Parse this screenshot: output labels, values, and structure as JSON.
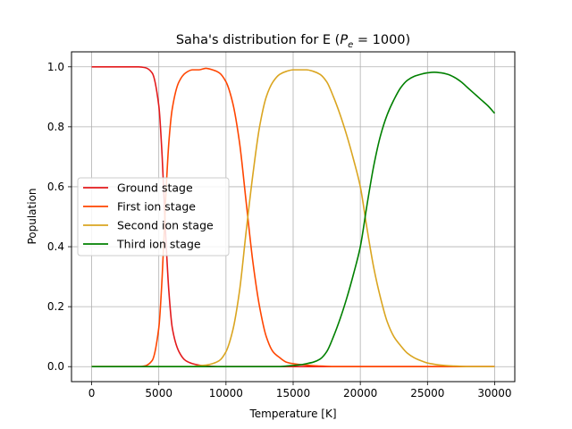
{
  "chart_data": {
    "type": "line",
    "title_prefix": "Saha's distribution for E (",
    "title_var": "P",
    "title_sub": "e",
    "title_suffix": " = 1000)",
    "xlabel": "Temperature [K]",
    "ylabel": "Population",
    "xlim": [
      -1500,
      31500
    ],
    "ylim": [
      -0.05,
      1.05
    ],
    "xticks": [
      0,
      5000,
      10000,
      15000,
      20000,
      25000,
      30000
    ],
    "yticks": [
      0.0,
      0.2,
      0.4,
      0.6,
      0.8,
      1.0
    ],
    "xtick_labels": [
      "0",
      "5000",
      "10000",
      "15000",
      "20000",
      "25000",
      "30000"
    ],
    "ytick_labels": [
      "0.0",
      "0.2",
      "0.4",
      "0.6",
      "0.8",
      "1.0"
    ],
    "grid": true,
    "legend_position": "center-left",
    "x": [
      0,
      1000,
      2000,
      3000,
      3500,
      4000,
      4500,
      5000,
      5250,
      5500,
      5750,
      6000,
      6500,
      7000,
      7500,
      8000,
      8500,
      9000,
      9500,
      10000,
      10500,
      11000,
      11500,
      12000,
      12500,
      13000,
      13500,
      14000,
      14500,
      15000,
      15500,
      16000,
      16500,
      17000,
      17500,
      18000,
      18500,
      19000,
      19500,
      20000,
      20500,
      21000,
      21500,
      22000,
      22500,
      23000,
      23500,
      24000,
      24500,
      25000,
      25500,
      26000,
      26500,
      27000,
      27500,
      28000,
      28500,
      29000,
      29500,
      30000
    ],
    "series": [
      {
        "name": "Ground stage",
        "color": "#e31a1c",
        "values": [
          1.0,
          1.0,
          1.0,
          1.0,
          1.0,
          0.997,
          0.98,
          0.87,
          0.7,
          0.45,
          0.25,
          0.13,
          0.05,
          0.02,
          0.01,
          0.005,
          0.002,
          0.001,
          0,
          0,
          0,
          0,
          0,
          0,
          0,
          0,
          0,
          0,
          0,
          0,
          0,
          0,
          0,
          0,
          0,
          0,
          0,
          0,
          0,
          0,
          0,
          0,
          0,
          0,
          0,
          0,
          0,
          0,
          0,
          0,
          0,
          0,
          0,
          0,
          0,
          0,
          0,
          0,
          0,
          0
        ]
      },
      {
        "name": "First ion stage",
        "color": "#ff4500",
        "values": [
          0,
          0,
          0,
          0,
          0,
          0.003,
          0.02,
          0.13,
          0.3,
          0.55,
          0.75,
          0.86,
          0.95,
          0.98,
          0.99,
          0.99,
          0.995,
          0.99,
          0.98,
          0.95,
          0.88,
          0.75,
          0.55,
          0.35,
          0.2,
          0.1,
          0.05,
          0.03,
          0.015,
          0.01,
          0.007,
          0.005,
          0.003,
          0.002,
          0.001,
          0,
          0,
          0,
          0,
          0,
          0,
          0,
          0,
          0,
          0,
          0,
          0,
          0,
          0,
          0,
          0,
          0,
          0,
          0,
          0,
          0,
          0,
          0,
          0,
          0
        ]
      },
      {
        "name": "Second ion stage",
        "color": "#daa520",
        "values": [
          0,
          0,
          0,
          0,
          0,
          0,
          0,
          0,
          0,
          0,
          0,
          0,
          0,
          0,
          0,
          0.003,
          0.005,
          0.01,
          0.02,
          0.05,
          0.12,
          0.25,
          0.45,
          0.64,
          0.8,
          0.9,
          0.95,
          0.975,
          0.985,
          0.99,
          0.99,
          0.99,
          0.985,
          0.975,
          0.95,
          0.9,
          0.84,
          0.77,
          0.69,
          0.6,
          0.46,
          0.33,
          0.23,
          0.15,
          0.1,
          0.07,
          0.045,
          0.03,
          0.02,
          0.012,
          0.008,
          0.005,
          0.003,
          0.002,
          0.001,
          0,
          0,
          0,
          0,
          0
        ]
      },
      {
        "name": "Third ion stage",
        "color": "#008000",
        "values": [
          0,
          0,
          0,
          0,
          0,
          0,
          0,
          0,
          0,
          0,
          0,
          0,
          0,
          0,
          0,
          0,
          0,
          0,
          0,
          0,
          0,
          0,
          0,
          0,
          0,
          0,
          0,
          0,
          0.002,
          0.004,
          0.006,
          0.01,
          0.015,
          0.025,
          0.05,
          0.1,
          0.16,
          0.23,
          0.31,
          0.4,
          0.54,
          0.67,
          0.77,
          0.84,
          0.89,
          0.93,
          0.955,
          0.968,
          0.975,
          0.98,
          0.982,
          0.98,
          0.975,
          0.965,
          0.95,
          0.93,
          0.91,
          0.89,
          0.87,
          0.845
        ]
      }
    ]
  }
}
